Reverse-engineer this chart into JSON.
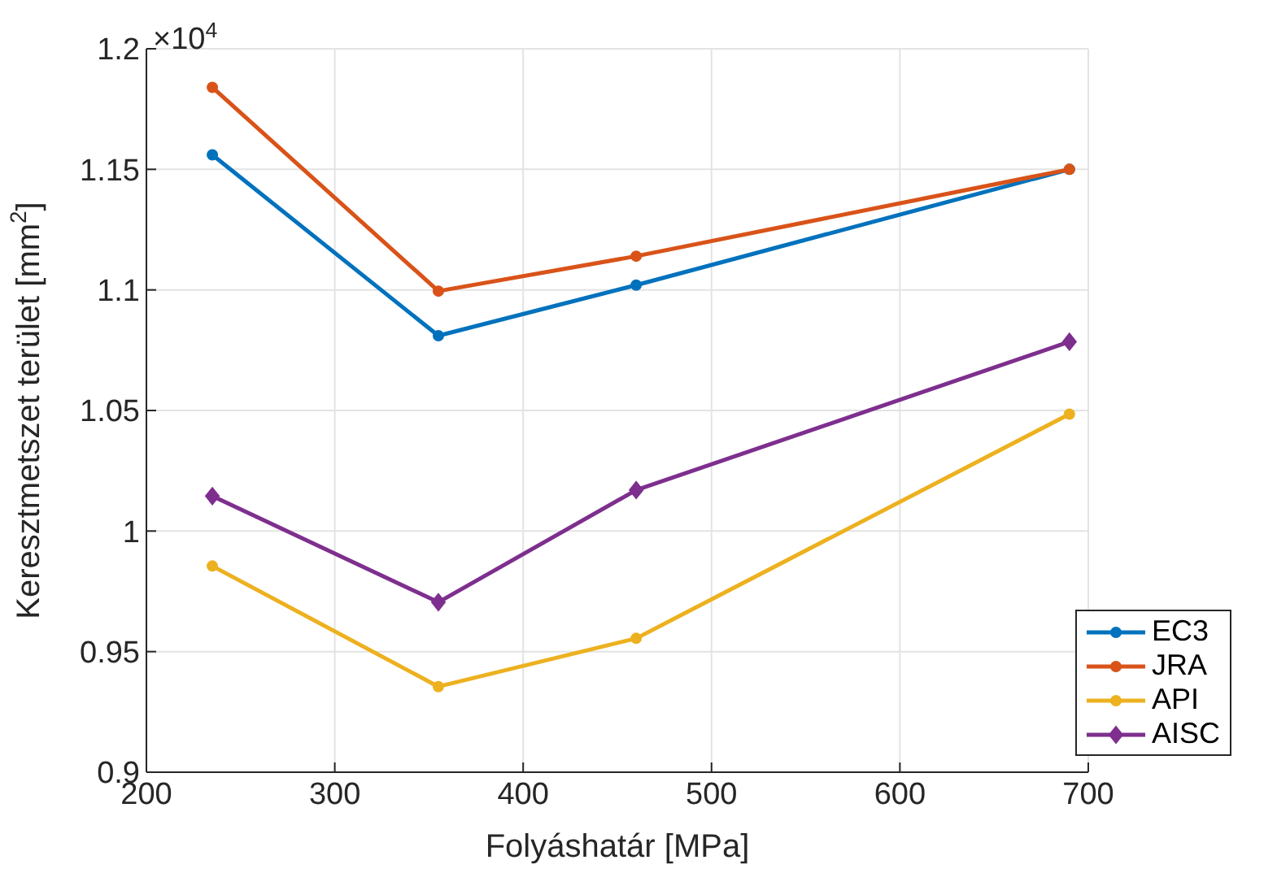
{
  "chart_data": {
    "type": "line",
    "xlabel": "Folyáshatár [MPa]",
    "ylabel": "Keresztmetszet terület [mm$^{2}$]",
    "annotations": [
      "×10$^{4}$"
    ],
    "x": [
      235,
      355,
      460,
      690
    ],
    "xlim": [
      200,
      700
    ],
    "xticks": [
      200,
      300,
      400,
      500,
      600,
      700
    ],
    "ylim": [
      0.9,
      1.2
    ],
    "yticks": [
      0.9,
      0.95,
      1,
      1.05,
      1.1,
      1.15,
      1.2
    ],
    "grid": true,
    "legend": "bottom right",
    "marker": "circle",
    "series": [
      {
        "name": "EC3",
        "color": "#0072bd",
        "values": [
          1.156,
          1.081,
          1.102,
          1.15
        ]
      },
      {
        "name": "JRA",
        "color": "#d95319",
        "values": [
          1.184,
          1.0995,
          1.114,
          1.15
        ]
      },
      {
        "name": "API",
        "color": "#edb120",
        "values": [
          0.9855,
          0.9355,
          0.9555,
          1.0485
        ]
      },
      {
        "name": "AISC",
        "color": "#7e2f8e",
        "marker": "diamond",
        "values": [
          1.0145,
          0.9705,
          1.017,
          1.0785
        ]
      }
    ]
  }
}
